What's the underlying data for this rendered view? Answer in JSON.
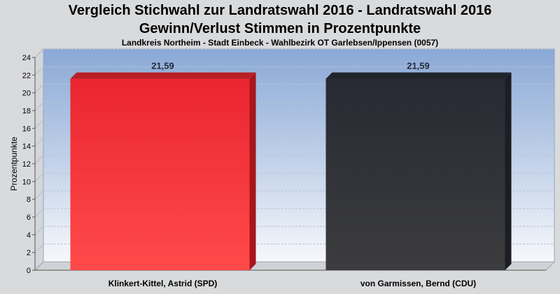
{
  "chart_data": {
    "type": "bar",
    "title": "Vergleich Stichwahl zur Landratswahl 2016 - Landratswahl 2016",
    "subtitle": "Gewinn/Verlust Stimmen in Prozentpunkte",
    "subtitle2": "Landkreis Northeim - Stadt Einbeck - Wahlbezirk OT Garlebsen/Ippensen (0057)",
    "ylabel": "Prozentpunkte",
    "xlabel": "",
    "ylim": [
      0,
      24
    ],
    "yticks": [
      "0",
      "2",
      "4",
      "6",
      "8",
      "10",
      "12",
      "14",
      "16",
      "18",
      "20",
      "22",
      "24"
    ],
    "categories": [
      "Klinkert-Kittel, Astrid (SPD)",
      "von Garmissen, Bernd (CDU)"
    ],
    "values": [
      21.59,
      21.59
    ],
    "data_labels": [
      "21,59",
      "21,59"
    ],
    "colors": [
      "#e8202a",
      "#2a2c33"
    ],
    "grid": true
  }
}
